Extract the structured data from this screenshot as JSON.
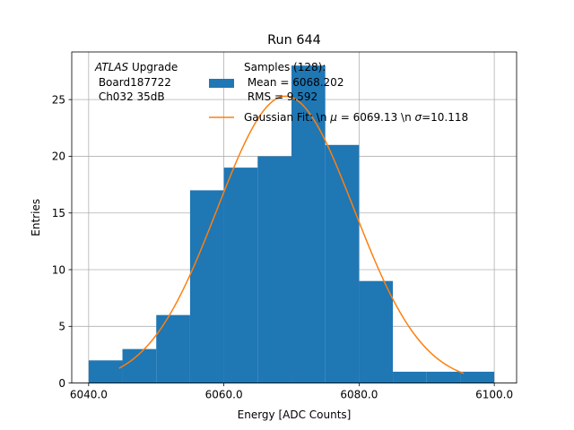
{
  "chart_data": {
    "type": "bar",
    "title": "Run 644",
    "xlabel": "Energy [ADC Counts]",
    "ylabel": "Entries",
    "xlim": [
      6037.5,
      6103.3
    ],
    "ylim": [
      0,
      29.2
    ],
    "grid": true,
    "x_ticks": [
      6040,
      6060,
      6080,
      6100
    ],
    "x_tick_labels": [
      "6040.0",
      "6060.0",
      "6080.0",
      "6100.0"
    ],
    "y_ticks": [
      0,
      5,
      10,
      15,
      20,
      25
    ],
    "y_tick_labels": [
      "0",
      "5",
      "10",
      "15",
      "20",
      "25"
    ],
    "histogram": {
      "name": "Samples (128):\n Mean = 6068.202\n RMS = 9.592",
      "color": "#1f77b4",
      "bin_edges": [
        6040,
        6045,
        6050,
        6055,
        6060,
        6065,
        6070,
        6075,
        6080,
        6085,
        6090,
        6095,
        6100
      ],
      "counts": [
        2,
        3,
        6,
        17,
        19,
        20,
        28,
        21,
        9,
        1,
        1,
        1
      ]
    },
    "fit": {
      "name": "Gaussian Fit: \\n $\\mu$ = 6069.13 \\n $\\sigma$=10.118",
      "color": "#ff7f0e",
      "mu": 6069.13,
      "sigma": 10.118,
      "amplitude": 25.3,
      "x_range": [
        6044.5,
        6095.5
      ]
    },
    "annotation": {
      "line1_italic": "ATLAS",
      "line1_rest": " Upgrade",
      "line2": " Board187722",
      "line3": " Ch032 35dB"
    },
    "legend": {
      "placement": "top-center",
      "hist_lines": [
        "Samples (128):",
        " Mean = 6068.202",
        " RMS = 9.592"
      ],
      "fit_text_pre": "Gaussian Fit: \\n ",
      "fit_mu_symbol": "μ",
      "fit_text_mid": " = 6069.13 \\n ",
      "fit_sigma_symbol": "σ",
      "fit_text_post": "=10.118"
    }
  }
}
